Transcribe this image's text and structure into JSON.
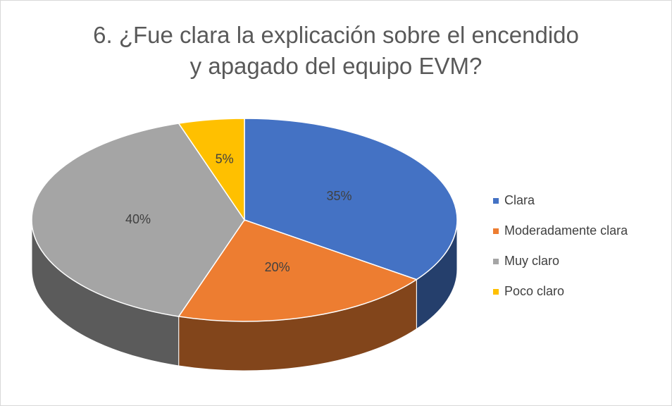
{
  "chart_data": {
    "type": "pie3d",
    "title": "6. ¿Fue clara la explicación sobre el encendido y apagado del equipo EVM?",
    "categories": [
      "Clara",
      "Moderadamente clara",
      "Muy claro",
      "Poco claro"
    ],
    "values": [
      35,
      20,
      40,
      5
    ],
    "value_labels": [
      "35%",
      "20%",
      "40%",
      "5%"
    ],
    "colors": [
      "#4472c4",
      "#ed7d31",
      "#a5a5a5",
      "#ffc000"
    ],
    "legend": "right"
  }
}
